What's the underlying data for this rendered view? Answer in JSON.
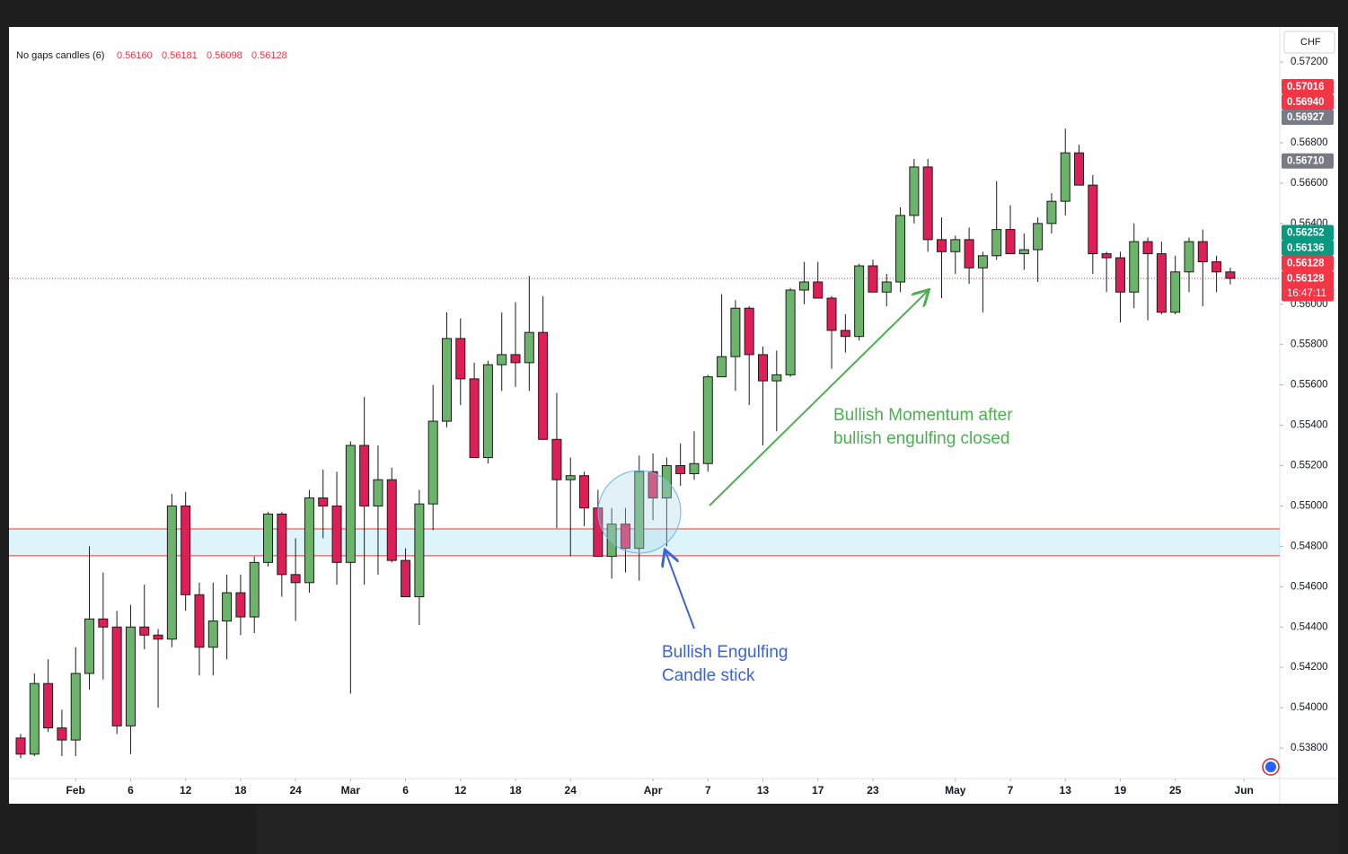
{
  "chart_data": {
    "type": "candlestick",
    "header": {
      "name": "No gaps candles (6)",
      "values": [
        0.5616,
        0.56181,
        0.56098,
        0.56128
      ],
      "value_labels": [
        "0.56160",
        "0.56181",
        "0.56098",
        "0.56128"
      ]
    },
    "currency": "CHF",
    "x": [
      0,
      1,
      2,
      3,
      4,
      5,
      6,
      7,
      8,
      9,
      10,
      11,
      12,
      13,
      14,
      15,
      16,
      17,
      18,
      19,
      20,
      21,
      22,
      23,
      24,
      25,
      26,
      27,
      28,
      29,
      30,
      31,
      32,
      33,
      34,
      35,
      36,
      37,
      38,
      39,
      40,
      41,
      42,
      43,
      44,
      45,
      46,
      47,
      48,
      49,
      50,
      51,
      52,
      53,
      54,
      55,
      56,
      57,
      58,
      59,
      60,
      61,
      62,
      63,
      64,
      65,
      66,
      67,
      68,
      69,
      70,
      71,
      72,
      73,
      74,
      75,
      76,
      77,
      78,
      79,
      80,
      81,
      82,
      83,
      84,
      85,
      86,
      87,
      88
    ],
    "open": [
      0.5385,
      0.5377,
      0.5412,
      0.539,
      0.5384,
      0.5417,
      0.5444,
      0.544,
      0.5391,
      0.544,
      0.5436,
      0.5434,
      0.55,
      0.5456,
      0.543,
      0.5443,
      0.5457,
      0.5445,
      0.5472,
      0.5496,
      0.5466,
      0.5462,
      0.5504,
      0.55,
      0.5472,
      0.553,
      0.55,
      0.5513,
      0.5473,
      0.5455,
      0.5501,
      0.5542,
      0.5583,
      0.5563,
      0.5524,
      0.557,
      0.5575,
      0.5571,
      0.5586,
      0.5533,
      0.5513,
      0.5515,
      0.5499,
      0.5475,
      0.5491,
      0.5479,
      0.5517,
      0.5504,
      0.552,
      0.5516,
      0.5521,
      0.5564,
      0.5574,
      0.5598,
      0.5575,
      0.5562,
      0.5565,
      0.5607,
      0.5611,
      0.5603,
      0.5587,
      0.5584,
      0.5619,
      0.5606,
      0.5611,
      0.5644,
      0.5668,
      0.5632,
      0.5626,
      0.5632,
      0.5618,
      0.5624,
      0.5637,
      0.5625,
      0.5627,
      0.564,
      0.5651,
      0.5675,
      0.5659,
      0.5625,
      0.5623,
      0.5606,
      0.5631,
      0.5625,
      0.5596,
      0.5616,
      0.5631,
      0.5621,
      0.5616
    ],
    "high": [
      0.5387,
      0.5417,
      0.5424,
      0.5399,
      0.543,
      0.548,
      0.5467,
      0.5448,
      0.5451,
      0.5461,
      0.5439,
      0.5506,
      0.5507,
      0.5462,
      0.5462,
      0.5466,
      0.5466,
      0.5475,
      0.5497,
      0.5497,
      0.5484,
      0.5508,
      0.5518,
      0.5517,
      0.5532,
      0.5554,
      0.553,
      0.5519,
      0.5479,
      0.5508,
      0.556,
      0.5596,
      0.5593,
      0.5571,
      0.5572,
      0.5596,
      0.5601,
      0.5614,
      0.5604,
      0.5556,
      0.5524,
      0.5517,
      0.5508,
      0.5499,
      0.5499,
      0.5525,
      0.5526,
      0.5524,
      0.5531,
      0.5537,
      0.5565,
      0.5605,
      0.5602,
      0.5599,
      0.5579,
      0.5577,
      0.5608,
      0.5621,
      0.5621,
      0.5604,
      0.5595,
      0.562,
      0.5622,
      0.5615,
      0.5648,
      0.5672,
      0.5672,
      0.5643,
      0.5634,
      0.5638,
      0.5626,
      0.5661,
      0.5649,
      0.5635,
      0.5643,
      0.5655,
      0.5687,
      0.5679,
      0.5664,
      0.5626,
      0.5626,
      0.564,
      0.5633,
      0.5631,
      0.5624,
      0.5633,
      0.5637,
      0.5624,
      0.56181
    ],
    "low": [
      0.5375,
      0.5376,
      0.5388,
      0.5376,
      0.5376,
      0.5409,
      0.5414,
      0.5387,
      0.5377,
      0.5429,
      0.54,
      0.543,
      0.5448,
      0.5416,
      0.5416,
      0.5424,
      0.5436,
      0.5437,
      0.547,
      0.5455,
      0.5443,
      0.5457,
      0.5484,
      0.5461,
      0.5407,
      0.5461,
      0.5466,
      0.5472,
      0.5455,
      0.5441,
      0.5488,
      0.5539,
      0.555,
      0.5524,
      0.5521,
      0.5557,
      0.5559,
      0.5557,
      0.5533,
      0.5489,
      0.5475,
      0.549,
      0.5475,
      0.5464,
      0.5467,
      0.5463,
      0.5493,
      0.548,
      0.551,
      0.5513,
      0.5517,
      0.5564,
      0.5557,
      0.555,
      0.553,
      0.5537,
      0.5564,
      0.56,
      0.5603,
      0.5568,
      0.5576,
      0.5582,
      0.5606,
      0.5599,
      0.5606,
      0.564,
      0.5626,
      0.5603,
      0.5615,
      0.561,
      0.5596,
      0.5622,
      0.5625,
      0.5617,
      0.5611,
      0.5635,
      0.5644,
      0.5659,
      0.5615,
      0.5606,
      0.5591,
      0.5598,
      0.5592,
      0.5595,
      0.5595,
      0.5606,
      0.5599,
      0.5606,
      0.56098
    ],
    "close": [
      0.5377,
      0.5412,
      0.539,
      0.5384,
      0.5417,
      0.5444,
      0.544,
      0.5391,
      0.544,
      0.5436,
      0.5434,
      0.55,
      0.5456,
      0.543,
      0.5443,
      0.5457,
      0.5445,
      0.5472,
      0.5496,
      0.5466,
      0.5462,
      0.5504,
      0.55,
      0.5472,
      0.553,
      0.55,
      0.5513,
      0.5473,
      0.5455,
      0.5501,
      0.5542,
      0.5583,
      0.5563,
      0.5524,
      0.557,
      0.5575,
      0.5571,
      0.5586,
      0.5533,
      0.5513,
      0.5515,
      0.5499,
      0.5475,
      0.5491,
      0.5479,
      0.5517,
      0.5504,
      0.552,
      0.5516,
      0.5521,
      0.5564,
      0.5574,
      0.5598,
      0.5575,
      0.5562,
      0.5565,
      0.5607,
      0.5611,
      0.5603,
      0.5587,
      0.5584,
      0.5619,
      0.5606,
      0.5611,
      0.5644,
      0.5668,
      0.5632,
      0.5626,
      0.5632,
      0.5618,
      0.5624,
      0.5637,
      0.5625,
      0.5627,
      0.564,
      0.5651,
      0.5675,
      0.5659,
      0.5625,
      0.5623,
      0.5606,
      0.5631,
      0.5625,
      0.5596,
      0.5616,
      0.5631,
      0.5621,
      0.5616,
      0.56128
    ],
    "up_color": "#6cb36c",
    "down_color": "#de1f57",
    "xlim": [
      -0.85,
      91.6
    ],
    "ylim": [
      0.53649,
      0.57374
    ],
    "xticks": [
      {
        "value": 4,
        "label": "Feb"
      },
      {
        "value": 8,
        "label": "6"
      },
      {
        "value": 12,
        "label": "12"
      },
      {
        "value": 16,
        "label": "18"
      },
      {
        "value": 20,
        "label": "24"
      },
      {
        "value": 24,
        "label": "Mar"
      },
      {
        "value": 28,
        "label": "6"
      },
      {
        "value": 32,
        "label": "12"
      },
      {
        "value": 36,
        "label": "18"
      },
      {
        "value": 40,
        "label": "24"
      },
      {
        "value": 46,
        "label": "Apr"
      },
      {
        "value": 50,
        "label": "7"
      },
      {
        "value": 54,
        "label": "13"
      },
      {
        "value": 58,
        "label": "17"
      },
      {
        "value": 62,
        "label": "23"
      },
      {
        "value": 68,
        "label": "May"
      },
      {
        "value": 72,
        "label": "7"
      },
      {
        "value": 76,
        "label": "13"
      },
      {
        "value": 80,
        "label": "19"
      },
      {
        "value": 84,
        "label": "25"
      },
      {
        "value": 89,
        "label": "Jun"
      }
    ],
    "yticks": [
      {
        "value": 0.572,
        "label": "0.57200"
      },
      {
        "value": 0.568,
        "label": "0.56800"
      },
      {
        "value": 0.566,
        "label": "0.56600"
      },
      {
        "value": 0.564,
        "label": "0.56400"
      },
      {
        "value": 0.56,
        "label": "0.56000"
      },
      {
        "value": 0.558,
        "label": "0.55800"
      },
      {
        "value": 0.556,
        "label": "0.55600"
      },
      {
        "value": 0.554,
        "label": "0.55400"
      },
      {
        "value": 0.552,
        "label": "0.55200"
      },
      {
        "value": 0.55,
        "label": "0.55000"
      },
      {
        "value": 0.548,
        "label": "0.54800"
      },
      {
        "value": 0.546,
        "label": "0.54600"
      },
      {
        "value": 0.544,
        "label": "0.54400"
      },
      {
        "value": 0.542,
        "label": "0.54200"
      },
      {
        "value": 0.54,
        "label": "0.54000"
      },
      {
        "value": 0.538,
        "label": "0.53800"
      }
    ],
    "price_tags": [
      {
        "value": 0.57016,
        "label": "0.57016",
        "color": "#f23645"
      },
      {
        "value": 0.5694,
        "label": "0.56940",
        "color": "#f23645"
      },
      {
        "value": 0.56927,
        "label": "0.56927",
        "color": "#787b86"
      },
      {
        "value": 0.5671,
        "label": "0.56710",
        "color": "#787b86"
      },
      {
        "value": 0.56252,
        "label": "0.56252",
        "color": "#089981"
      },
      {
        "value": 0.56136,
        "label": "0.56136",
        "color": "#089981"
      },
      {
        "value": 0.56128,
        "label": "0.56128",
        "color": "#f23645"
      },
      {
        "value": 0.56128,
        "label": "0.56128",
        "color": "#f23645",
        "time": "16:47:11"
      }
    ],
    "zone": [
      0.54753,
      0.54886
    ],
    "annotations": {
      "momentum": [
        "Bullish Momentum after",
        "bullish engulfing closed"
      ],
      "engulfing": [
        "Bullish Engulfing",
        "Candle stick"
      ]
    }
  }
}
